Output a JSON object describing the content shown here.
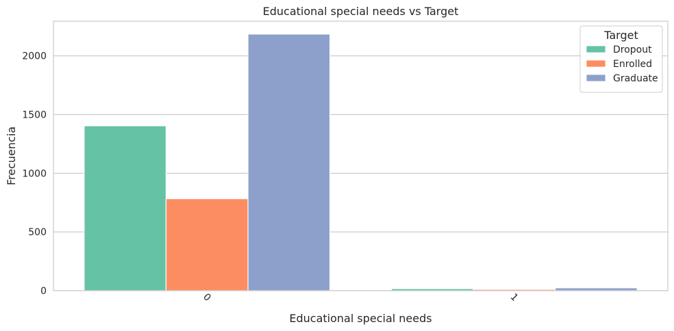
{
  "chart_data": {
    "type": "bar",
    "title": "Educational special needs vs Target",
    "xlabel": "Educational special needs",
    "ylabel": "Frecuencia",
    "categories": [
      "0",
      "1"
    ],
    "series": [
      {
        "name": "Dropout",
        "values": [
          1404,
          17
        ],
        "color": "#66c2a5"
      },
      {
        "name": "Enrolled",
        "values": [
          783,
          11
        ],
        "color": "#fc8d62"
      },
      {
        "name": "Graduate",
        "values": [
          2185,
          24
        ],
        "color": "#8da0cb"
      }
    ],
    "yticks": [
      0,
      500,
      1000,
      1500,
      2000
    ],
    "ylim": [
      0,
      2295
    ],
    "grid": true,
    "legend": {
      "title": "Target",
      "placement": "top-right"
    }
  }
}
